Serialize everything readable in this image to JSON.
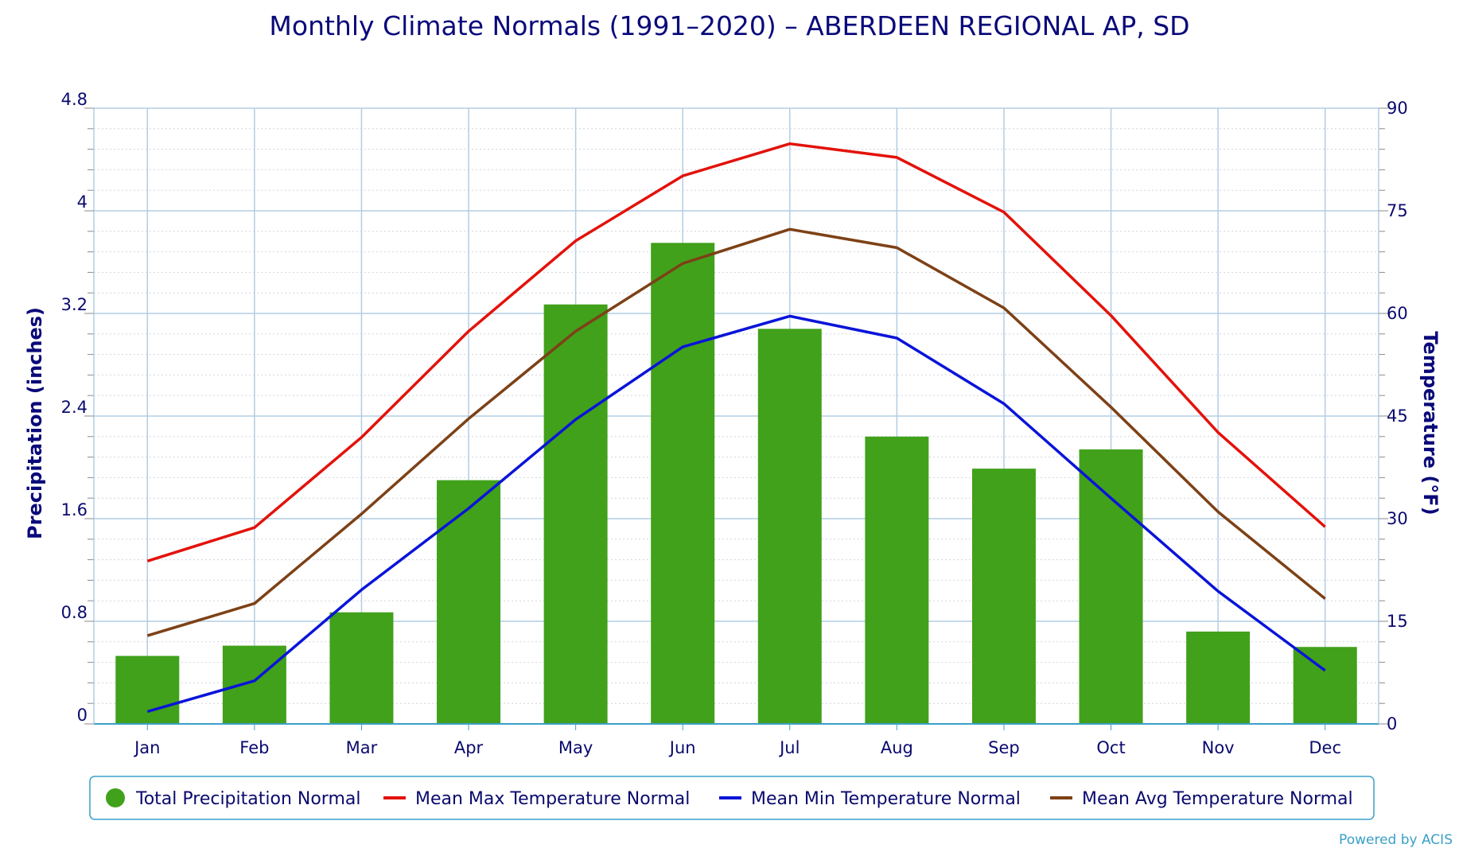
{
  "chart_data": {
    "type": "bar+line",
    "title": "Monthly Climate Normals (1991–2020) – ABERDEEN REGIONAL AP, SD",
    "categories": [
      "Jan",
      "Feb",
      "Mar",
      "Apr",
      "May",
      "Jun",
      "Jul",
      "Aug",
      "Sep",
      "Oct",
      "Nov",
      "Dec"
    ],
    "y_left": {
      "label": "Precipitation (inches)",
      "range": [
        0,
        4.8
      ],
      "ticks": [
        "0",
        "0.8",
        "1.6",
        "2.4",
        "3.2",
        "4",
        "4.8"
      ]
    },
    "y_right": {
      "label": "Temperature (°F)",
      "range": [
        0,
        90
      ],
      "ticks": [
        "0",
        "15",
        "30",
        "45",
        "60",
        "75",
        "90"
      ]
    },
    "grid": true,
    "legend_position": "bottom",
    "series": [
      {
        "name": "Total Precipitation Normal",
        "type": "bar",
        "axis": "left",
        "color": "#41a11b",
        "values": [
          0.53,
          0.61,
          0.87,
          1.9,
          3.27,
          3.75,
          3.08,
          2.24,
          1.99,
          2.14,
          0.72,
          0.6
        ]
      },
      {
        "name": "Mean Max Temperature Normal",
        "type": "line",
        "axis": "right",
        "color": "#e3120b",
        "values": [
          23.8,
          28.7,
          41.9,
          57.4,
          70.6,
          80.1,
          84.8,
          82.8,
          74.8,
          59.7,
          42.6,
          28.8
        ]
      },
      {
        "name": "Mean Min Temperature Normal",
        "type": "line",
        "axis": "right",
        "color": "#0a14d8",
        "values": [
          1.8,
          6.3,
          19.6,
          31.5,
          44.5,
          55.1,
          59.6,
          56.4,
          46.8,
          33.0,
          19.4,
          7.8
        ]
      },
      {
        "name": "Mean Avg Temperature Normal",
        "type": "line",
        "axis": "right",
        "color": "#7d4116",
        "values": [
          12.9,
          17.6,
          30.7,
          44.6,
          57.4,
          67.3,
          72.3,
          69.6,
          60.8,
          46.3,
          31.0,
          18.3
        ]
      }
    ]
  },
  "credit": "Powered by ACIS"
}
